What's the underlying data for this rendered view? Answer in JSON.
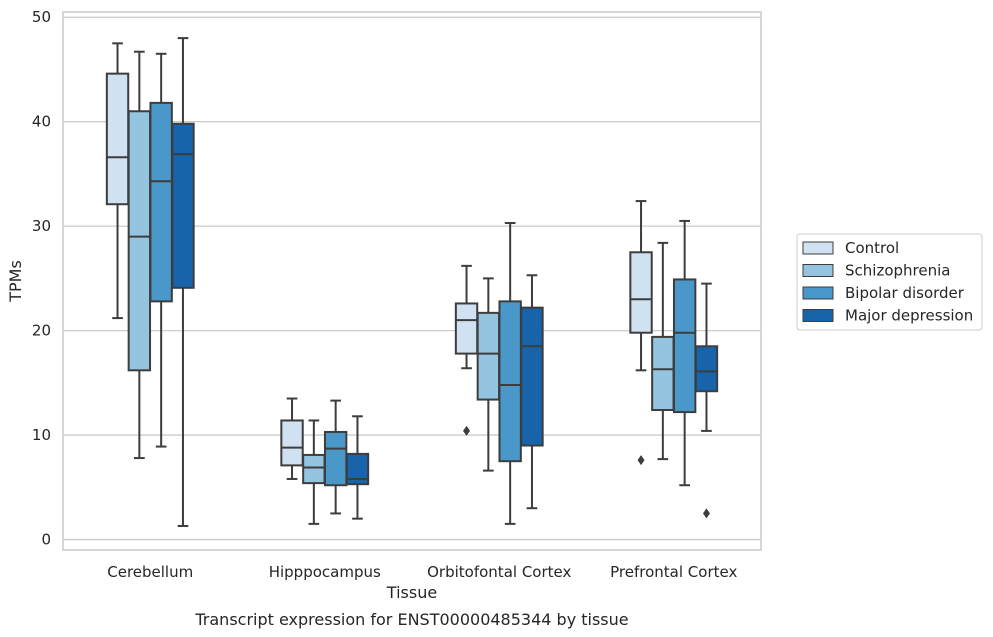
{
  "chart_data": {
    "type": "box",
    "title": "Transcript expression for ENST00000485344 by tissue",
    "xlabel": "Tissue",
    "ylabel": "TPMs",
    "ylim": [
      -1,
      50.5
    ],
    "yticks": [
      0,
      10,
      20,
      30,
      40,
      50
    ],
    "grid": "horizontal",
    "legend_position": "right",
    "categories": [
      "Cerebellum",
      "Hipppocampus",
      "Orbitofontal Cortex",
      "Prefrontal Cortex"
    ],
    "series": [
      {
        "name": "Control",
        "color": "#d0e1f2",
        "boxes": [
          {
            "low": 21.2,
            "q1": 32.1,
            "median": 36.6,
            "q3": 44.6,
            "high": 47.5,
            "outliers": []
          },
          {
            "low": 5.8,
            "q1": 7.1,
            "median": 8.8,
            "q3": 11.4,
            "high": 13.5,
            "outliers": []
          },
          {
            "low": 16.4,
            "q1": 17.8,
            "median": 21.0,
            "q3": 22.6,
            "high": 26.2,
            "outliers": [
              10.4
            ]
          },
          {
            "low": 16.2,
            "q1": 19.8,
            "median": 23.0,
            "q3": 27.5,
            "high": 32.4,
            "outliers": [
              7.6
            ]
          }
        ]
      },
      {
        "name": "Schizophrenia",
        "color": "#94c4df",
        "boxes": [
          {
            "low": 7.8,
            "q1": 16.2,
            "median": 29.0,
            "q3": 41.0,
            "high": 46.7,
            "outliers": []
          },
          {
            "low": 1.5,
            "q1": 5.4,
            "median": 6.9,
            "q3": 8.1,
            "high": 11.4,
            "outliers": []
          },
          {
            "low": 6.6,
            "q1": 13.4,
            "median": 17.8,
            "q3": 21.7,
            "high": 25.0,
            "outliers": []
          },
          {
            "low": 7.7,
            "q1": 12.4,
            "median": 16.3,
            "q3": 19.4,
            "high": 28.4,
            "outliers": []
          }
        ]
      },
      {
        "name": "Bipolar disorder",
        "color": "#4a98c9",
        "boxes": [
          {
            "low": 8.9,
            "q1": 22.8,
            "median": 34.3,
            "q3": 41.8,
            "high": 46.5,
            "outliers": []
          },
          {
            "low": 2.5,
            "q1": 5.2,
            "median": 8.7,
            "q3": 10.3,
            "high": 13.3,
            "outliers": []
          },
          {
            "low": 1.5,
            "q1": 7.5,
            "median": 14.8,
            "q3": 22.8,
            "high": 30.3,
            "outliers": []
          },
          {
            "low": 5.2,
            "q1": 12.2,
            "median": 19.8,
            "q3": 24.9,
            "high": 30.5,
            "outliers": []
          }
        ]
      },
      {
        "name": "Major depression",
        "color": "#1764ab",
        "boxes": [
          {
            "low": 1.3,
            "q1": 24.1,
            "median": 36.9,
            "q3": 39.8,
            "high": 48.0,
            "outliers": []
          },
          {
            "low": 2.0,
            "q1": 5.3,
            "median": 5.8,
            "q3": 8.2,
            "high": 11.8,
            "outliers": []
          },
          {
            "low": 3.0,
            "q1": 9.0,
            "median": 18.5,
            "q3": 22.2,
            "high": 25.3,
            "outliers": []
          },
          {
            "low": 10.4,
            "q1": 14.2,
            "median": 16.1,
            "q3": 18.5,
            "high": 24.5,
            "outliers": [
              2.5
            ]
          }
        ]
      }
    ]
  }
}
